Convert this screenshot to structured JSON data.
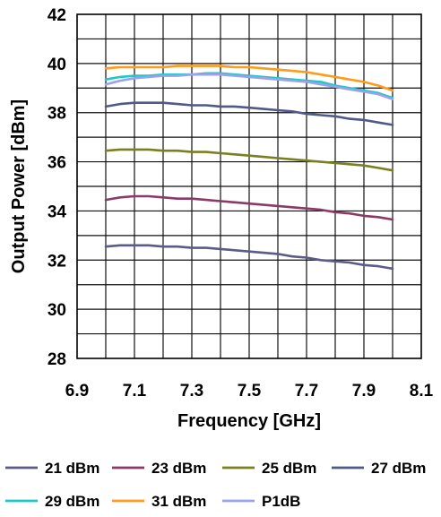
{
  "chart_data": {
    "type": "line",
    "title": "",
    "xlabel": "Frequency [GHz]",
    "ylabel": "Output Power [dBm]",
    "xlim": [
      6.9,
      8.1
    ],
    "ylim": [
      28,
      42
    ],
    "x_ticks": [
      "6.9",
      "7.1",
      "7.3",
      "7.5",
      "7.7",
      "7.9",
      "8.1"
    ],
    "y_ticks": [
      "28",
      "30",
      "32",
      "34",
      "36",
      "38",
      "40",
      "42"
    ],
    "grid": true,
    "legend_position": "bottom",
    "x": [
      7.0,
      7.05,
      7.1,
      7.15,
      7.2,
      7.25,
      7.3,
      7.35,
      7.4,
      7.45,
      7.5,
      7.55,
      7.6,
      7.65,
      7.7,
      7.75,
      7.8,
      7.85,
      7.9,
      7.95,
      8.0
    ],
    "series": [
      {
        "name": "21 dBm",
        "color": "#5b5b8a",
        "values": [
          32.55,
          32.6,
          32.6,
          32.6,
          32.55,
          32.55,
          32.5,
          32.5,
          32.45,
          32.4,
          32.35,
          32.3,
          32.25,
          32.15,
          32.1,
          32.0,
          31.95,
          31.9,
          31.8,
          31.75,
          31.65
        ]
      },
      {
        "name": "23 dBm",
        "color": "#8b3a66",
        "values": [
          34.45,
          34.55,
          34.6,
          34.6,
          34.55,
          34.5,
          34.5,
          34.45,
          34.4,
          34.35,
          34.3,
          34.25,
          34.2,
          34.15,
          34.1,
          34.05,
          33.95,
          33.9,
          33.8,
          33.75,
          33.65
        ]
      },
      {
        "name": "25 dBm",
        "color": "#7a8020",
        "values": [
          36.45,
          36.5,
          36.5,
          36.5,
          36.45,
          36.45,
          36.4,
          36.4,
          36.35,
          36.3,
          36.25,
          36.2,
          36.15,
          36.1,
          36.05,
          36.0,
          35.95,
          35.9,
          35.85,
          35.75,
          35.65
        ]
      },
      {
        "name": "27 dBm",
        "color": "#4f5a88",
        "values": [
          38.25,
          38.35,
          38.4,
          38.4,
          38.4,
          38.35,
          38.3,
          38.3,
          38.25,
          38.25,
          38.2,
          38.15,
          38.1,
          38.05,
          37.95,
          37.9,
          37.85,
          37.75,
          37.7,
          37.6,
          37.5
        ]
      },
      {
        "name": "29 dBm",
        "color": "#1fc7c7",
        "values": [
          39.35,
          39.45,
          39.5,
          39.5,
          39.55,
          39.55,
          39.55,
          39.6,
          39.6,
          39.55,
          39.5,
          39.45,
          39.4,
          39.35,
          39.3,
          39.25,
          39.1,
          39.0,
          38.9,
          38.8,
          38.6
        ]
      },
      {
        "name": "31 dBm",
        "color": "#ff9b1a",
        "values": [
          39.8,
          39.85,
          39.85,
          39.85,
          39.85,
          39.9,
          39.9,
          39.9,
          39.9,
          39.85,
          39.85,
          39.8,
          39.75,
          39.7,
          39.65,
          39.55,
          39.45,
          39.35,
          39.25,
          39.1,
          38.9
        ]
      },
      {
        "name": "P1dB",
        "color": "#9aa2ec",
        "values": [
          39.15,
          39.3,
          39.4,
          39.45,
          39.5,
          39.5,
          39.55,
          39.55,
          39.55,
          39.5,
          39.45,
          39.4,
          39.35,
          39.3,
          39.25,
          39.15,
          39.05,
          38.95,
          38.85,
          38.75,
          38.55
        ]
      }
    ]
  }
}
